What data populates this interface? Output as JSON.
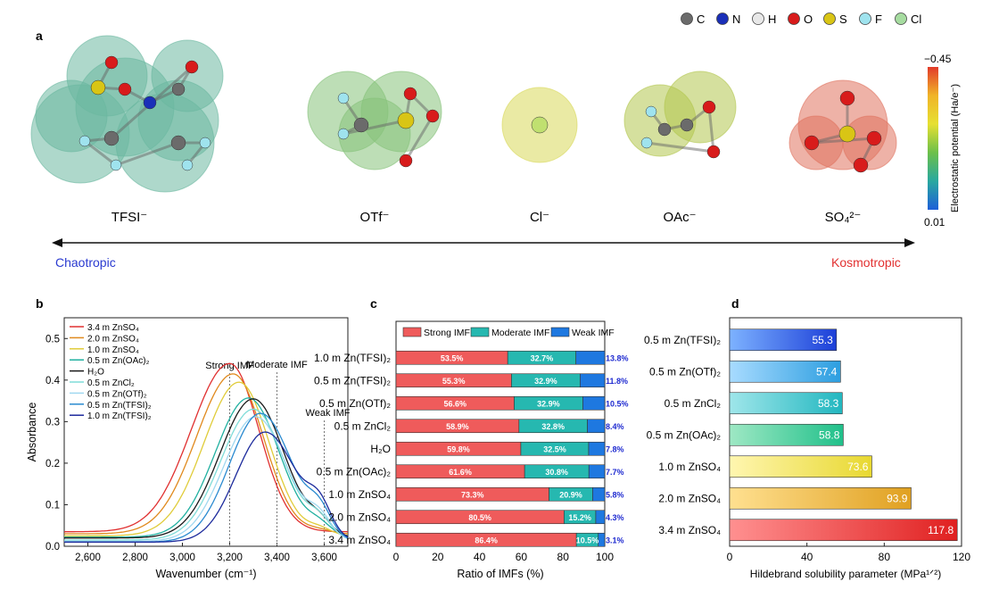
{
  "panel_letters": {
    "a": "a",
    "b": "b",
    "c": "c",
    "d": "d"
  },
  "atom_legend": [
    {
      "symbol": "C",
      "color": "#6b6b6b"
    },
    {
      "symbol": "N",
      "color": "#1a2fb8"
    },
    {
      "symbol": "H",
      "color": "#e8e8e8"
    },
    {
      "symbol": "O",
      "color": "#d81b1b"
    },
    {
      "symbol": "S",
      "color": "#d9c515"
    },
    {
      "symbol": "F",
      "color": "#9fe3ee"
    },
    {
      "symbol": "Cl",
      "color": "#a6dca0"
    }
  ],
  "ions": [
    {
      "label": "TFSI⁻",
      "color": "#6bb8a0"
    },
    {
      "label": "OTf⁻",
      "color": "#86c27a"
    },
    {
      "label": "Cl⁻",
      "color": "#d9d85a"
    },
    {
      "label": "OAc⁻",
      "color": "#b3c74e"
    },
    {
      "label": "SO₄²⁻",
      "color": "#e0735f"
    }
  ],
  "colorbar": {
    "top": "−0.45",
    "bottom": "0.01",
    "label": "Electrostatic potential (Ha/e⁻)",
    "stops": [
      "#e23a2a",
      "#f0b429",
      "#e6e032",
      "#6cc04a",
      "#29a8a0",
      "#1e5fd8"
    ]
  },
  "chaotropic": "Chaotropic",
  "kosmotropic": "Kosmotropic",
  "chart_data": [
    {
      "type": "line",
      "xlabel": "Wavenumber (cm⁻¹)",
      "ylabel": "Absorbance",
      "xlim": [
        2500,
        3700
      ],
      "ylim": [
        0,
        0.55
      ],
      "xticks": [
        "2,600",
        "2,800",
        "3,000",
        "3,200",
        "3,400",
        "3,600"
      ],
      "xtick_values": [
        2600,
        2800,
        3000,
        3200,
        3400,
        3600
      ],
      "yticks": [
        "0.0",
        "0.1",
        "0.2",
        "0.3",
        "0.4",
        "0.5"
      ],
      "ytick_values": [
        0,
        0.1,
        0.2,
        0.3,
        0.4,
        0.5
      ],
      "annotations": [
        {
          "text": "Strong IMF",
          "x": 3200
        },
        {
          "text": "Moderate IMF",
          "x": 3400
        },
        {
          "text": "Weak IMF",
          "x": 3600
        }
      ],
      "series": [
        {
          "name": "3.4 m ZnSO₄",
          "color": "#e03030",
          "base": 0.035,
          "amp": 0.405,
          "peak": 3200,
          "wl": 230,
          "wr": 175
        },
        {
          "name": "2.0 m ZnSO₄",
          "color": "#e08a1e",
          "base": 0.03,
          "amp": 0.385,
          "peak": 3215,
          "wl": 220,
          "wr": 180
        },
        {
          "name": "1.0 m ZnSO₄",
          "color": "#e0cc3a",
          "base": 0.025,
          "amp": 0.37,
          "peak": 3240,
          "wl": 210,
          "wr": 180
        },
        {
          "name": "0.5 m Zn(OAc)₂",
          "color": "#20b0a0",
          "base": 0.022,
          "amp": 0.335,
          "peak": 3280,
          "wl": 200,
          "wr": 185
        },
        {
          "name": "H₂O",
          "color": "#1a1a1a",
          "base": 0.02,
          "amp": 0.335,
          "peak": 3300,
          "wl": 200,
          "wr": 185
        },
        {
          "name": "0.5 m ZnCl₂",
          "color": "#7fdcd8",
          "base": 0.015,
          "amp": 0.315,
          "peak": 3300,
          "wl": 195,
          "wr": 185
        },
        {
          "name": "0.5 m Zn(OTf)₂",
          "color": "#a0d8f0",
          "base": 0.012,
          "amp": 0.3,
          "peak": 3310,
          "wl": 190,
          "wr": 185
        },
        {
          "name": "0.5 m Zn(TFSI)₂",
          "color": "#2a8ad0",
          "base": 0.01,
          "amp": 0.31,
          "peak": 3330,
          "wl": 185,
          "wr": 190
        },
        {
          "name": "1.0 m Zn(TFSI)₂",
          "color": "#1c2a9c",
          "base": 0.01,
          "amp": 0.265,
          "peak": 3350,
          "wl": 175,
          "wr": 190
        }
      ]
    },
    {
      "type": "bar",
      "orientation": "horizontal-stacked",
      "xlabel": "Ratio of IMFs (%)",
      "xlim": [
        0,
        100
      ],
      "xticks": [
        "0",
        "20",
        "40",
        "60",
        "80",
        "100"
      ],
      "xtick_values": [
        0,
        20,
        40,
        60,
        80,
        100
      ],
      "legend": [
        "Strong IMF",
        "Moderate IMF",
        "Weak IMF"
      ],
      "colors": [
        "#ef5b5b",
        "#26b8b0",
        "#1e78e0"
      ],
      "categories": [
        "1.0 m Zn(TFSI)₂",
        "0.5 m Zn(TFSI)₂",
        "0.5 m Zn(OTf)₂",
        "0.5 m ZnCl₂",
        "H₂O",
        "0.5 m Zn(OAc)₂",
        "1.0 m ZnSO₄",
        "2.0 m ZnSO₄",
        "3.4 m ZnSO₄"
      ],
      "strong": [
        53.5,
        55.3,
        56.6,
        58.9,
        59.8,
        61.6,
        73.3,
        80.5,
        86.4
      ],
      "moderate": [
        32.7,
        32.9,
        32.9,
        32.8,
        32.5,
        30.8,
        20.9,
        15.2,
        10.5
      ],
      "weak": [
        13.8,
        11.8,
        10.5,
        8.4,
        7.8,
        7.7,
        5.8,
        4.3,
        3.1
      ],
      "strong_labels": [
        "53.5%",
        "55.3%",
        "56.6%",
        "58.9%",
        "59.8%",
        "61.6%",
        "73.3%",
        "80.5%",
        "86.4%"
      ],
      "moderate_labels": [
        "32.7%",
        "32.9%",
        "32.9%",
        "32.8%",
        "32.5%",
        "30.8%",
        "20.9%",
        "15.2%",
        "10.5%"
      ],
      "weak_labels": [
        "13.8%",
        "11.8%",
        "10.5%",
        "8.4%",
        "7.8%",
        "7.7%",
        "5.8%",
        "4.3%",
        "3.1%"
      ]
    },
    {
      "type": "bar",
      "orientation": "horizontal",
      "xlabel": "Hildebrand solubility parameter (MPa¹ᐟ²)",
      "xlim": [
        0,
        120
      ],
      "xticks": [
        "0",
        "40",
        "80",
        "120"
      ],
      "xtick_values": [
        0,
        40,
        80,
        120
      ],
      "categories": [
        "0.5 m Zn(TFSI)₂",
        "0.5 m Zn(OTf)₂",
        "0.5 m ZnCl₂",
        "0.5 m Zn(OAc)₂",
        "1.0 m ZnSO₄",
        "2.0 m ZnSO₄",
        "3.4 m ZnSO₄"
      ],
      "values": [
        55.3,
        57.4,
        58.3,
        58.8,
        73.6,
        93.9,
        117.8
      ],
      "value_labels": [
        "55.3",
        "57.4",
        "58.3",
        "58.8",
        "73.6",
        "93.9",
        "117.8"
      ],
      "colors": [
        [
          "#1c3fd8",
          "#7db2ff"
        ],
        [
          "#2c9ee0",
          "#a8dbff"
        ],
        [
          "#22b7c0",
          "#9fe6ea"
        ],
        [
          "#20c08a",
          "#9ee8c4"
        ],
        [
          "#e8d830",
          "#fff6b0"
        ],
        [
          "#e0a020",
          "#ffe090"
        ],
        [
          "#e02020",
          "#ff9090"
        ]
      ]
    }
  ]
}
